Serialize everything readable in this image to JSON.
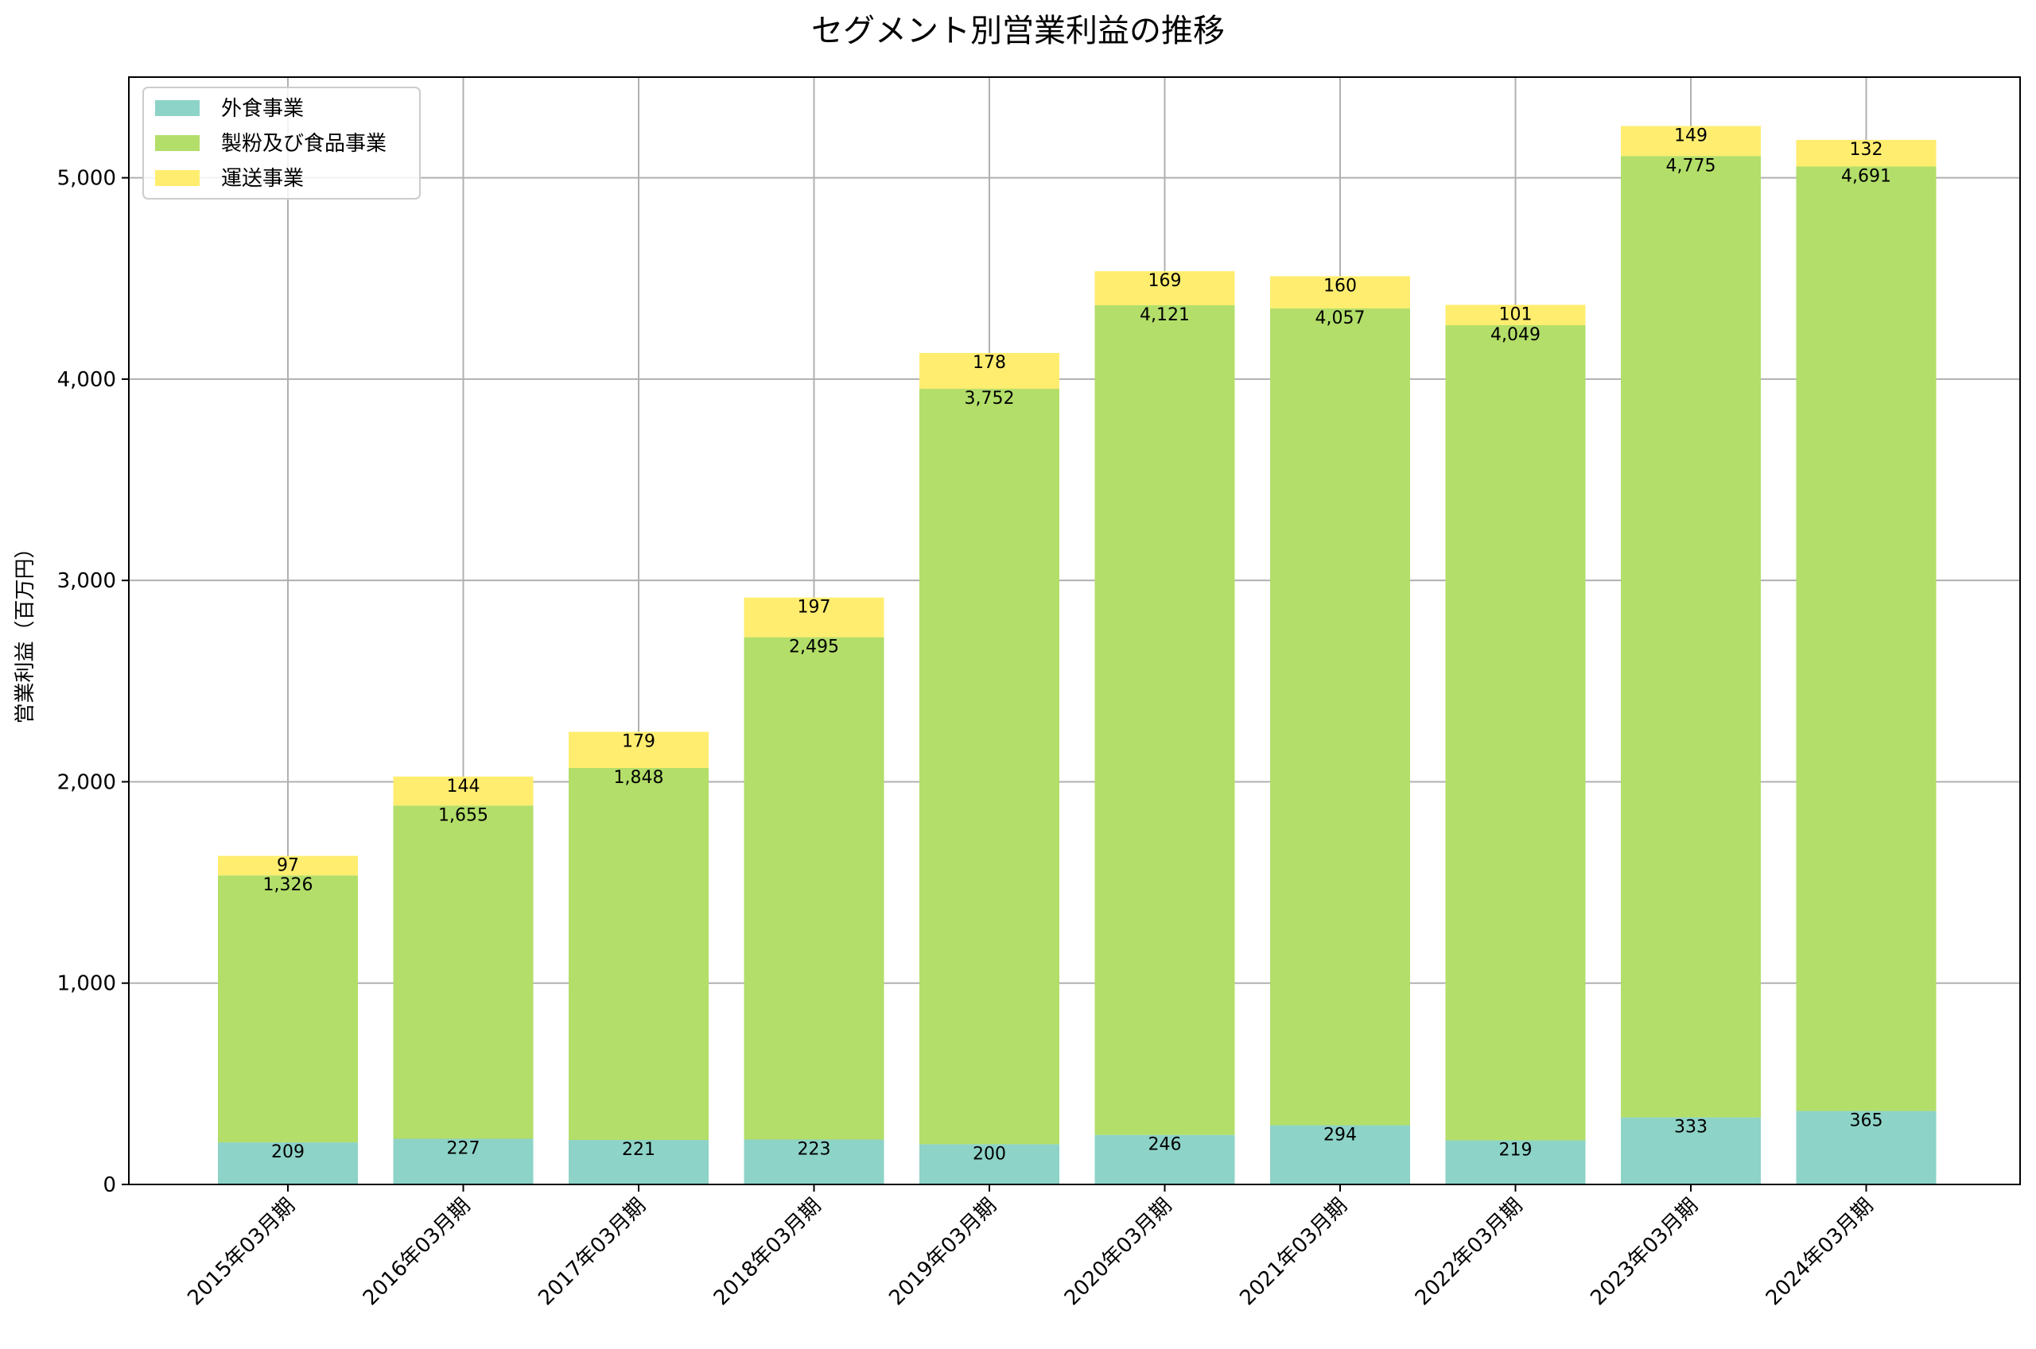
{
  "chart_data": {
    "type": "bar",
    "stacked": true,
    "title": "セグメント別営業利益の推移",
    "xlabel": "",
    "ylabel": "営業利益（百万円）",
    "ylim": [
      0,
      5500
    ],
    "yticks": [
      0,
      1000,
      2000,
      3000,
      4000,
      5000
    ],
    "ytick_labels": [
      "0",
      "1,000",
      "2,000",
      "3,000",
      "4,000",
      "5,000"
    ],
    "grid": true,
    "legend_position": "top-left",
    "categories": [
      "2015年03月期",
      "2016年03月期",
      "2017年03月期",
      "2018年03月期",
      "2019年03月期",
      "2020年03月期",
      "2021年03月期",
      "2022年03月期",
      "2023年03月期",
      "2024年03月期"
    ],
    "series": [
      {
        "name": "外食事業",
        "color": "#8dd3c7",
        "values": [
          209,
          227,
          221,
          223,
          200,
          246,
          294,
          219,
          333,
          365
        ],
        "labels": [
          "209",
          "227",
          "221",
          "223",
          "200",
          "246",
          "294",
          "219",
          "333",
          "365"
        ]
      },
      {
        "name": "製粉及び食品事業",
        "color": "#b3de69",
        "values": [
          1326,
          1655,
          1848,
          2495,
          3752,
          4121,
          4057,
          4049,
          4775,
          4691
        ],
        "labels": [
          "1,326",
          "1,655",
          "1,848",
          "2,495",
          "3,752",
          "4,121",
          "4,057",
          "4,049",
          "4,775",
          "4,691"
        ]
      },
      {
        "name": "運送事業",
        "color": "#ffed6f",
        "values": [
          97,
          144,
          179,
          197,
          178,
          169,
          160,
          101,
          149,
          132
        ],
        "labels": [
          "97",
          "144",
          "179",
          "197",
          "178",
          "169",
          "160",
          "101",
          "149",
          "132"
        ]
      }
    ]
  }
}
